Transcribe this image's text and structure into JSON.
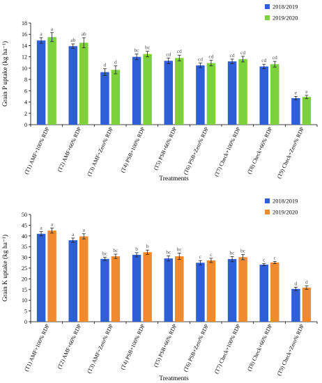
{
  "chart_data": [
    {
      "type": "bar",
      "ylabel": "Grain P uptake (kg ha⁻¹)",
      "xlabel": "Treatments",
      "ylim": [
        0,
        18
      ],
      "yticks": [
        0,
        2,
        4,
        6,
        8,
        10,
        12,
        14,
        16,
        18
      ],
      "grid": false,
      "legend": "top-right",
      "categories": [
        "(T1) AMF+100% RDP",
        "(T2) AMF+66% RDP",
        "(T3) AMF+Zero% RDP",
        "(T4) PSB+100% RDP",
        "(T5) PSB+66% RDP",
        "(T6) PSB+Zero% RDP",
        "(T7) Check+100% RDP",
        "(T8) Check+66% RDP",
        "(T9) Check+Zero% RDP"
      ],
      "series": [
        {
          "name": "2018/2019",
          "color": "#2e5fd6",
          "values": [
            14.9,
            13.9,
            9.3,
            12.0,
            11.3,
            10.5,
            11.2,
            10.3,
            4.7
          ],
          "errors": [
            0.5,
            0.4,
            0.6,
            0.5,
            0.5,
            0.4,
            0.4,
            0.4,
            0.3
          ],
          "labels": [
            "a",
            "ab",
            "d",
            "bc",
            "cd",
            "cd",
            "cd",
            "cd",
            "e"
          ]
        },
        {
          "name": "2019/2020",
          "color": "#7dd13a",
          "values": [
            15.5,
            14.5,
            9.7,
            12.5,
            11.8,
            10.9,
            11.6,
            10.7,
            4.9
          ],
          "errors": [
            0.8,
            0.9,
            0.7,
            0.5,
            0.5,
            0.5,
            0.5,
            0.5,
            0.3
          ],
          "labels": [
            "a",
            "ab",
            "d",
            "bc",
            "cd",
            "cd",
            "cd",
            "cd",
            "e"
          ]
        }
      ]
    },
    {
      "type": "bar",
      "ylabel": "Grain K uptake (kg ha⁻¹)",
      "xlabel": "Treatments",
      "ylim": [
        0,
        50
      ],
      "yticks": [
        0,
        5,
        10,
        15,
        20,
        25,
        30,
        35,
        40,
        45,
        50
      ],
      "grid": false,
      "legend": "top-right",
      "categories": [
        "(T1) AMF+100% RDP",
        "(T2) AMF+66% RDP",
        "(T3) AMF+Zero% RDP",
        "(T4) PSB+100% RDP",
        "(T5) PSB+66% RDP",
        "(T6) PSB+Zero% RDP",
        "(T7) Check+100% RDP",
        "(T8) Check+66% RDP",
        "(T9) Check+Zero% RDP"
      ],
      "series": [
        {
          "name": "2018/2019",
          "color": "#2e5fd6",
          "values": [
            41.0,
            38.0,
            29.3,
            31.2,
            29.5,
            27.5,
            29.2,
            26.6,
            15.3
          ],
          "errors": [
            1.0,
            1.0,
            0.8,
            1.0,
            1.2,
            1.0,
            1.2,
            0.5,
            0.8
          ],
          "labels": [
            "a",
            "a",
            "bc",
            "b",
            "bc",
            "c",
            "bc",
            "c",
            "d"
          ]
        },
        {
          "name": "2019/2020",
          "color": "#f08a2e",
          "values": [
            42.5,
            39.8,
            30.5,
            32.4,
            30.5,
            28.6,
            30.1,
            27.6,
            15.9
          ],
          "errors": [
            1.2,
            1.2,
            1.0,
            1.0,
            1.5,
            1.0,
            1.2,
            0.5,
            0.8
          ],
          "labels": [
            "a",
            "a",
            "bc",
            "b",
            "bc",
            "c",
            "bc",
            "c",
            "d"
          ]
        }
      ]
    }
  ]
}
